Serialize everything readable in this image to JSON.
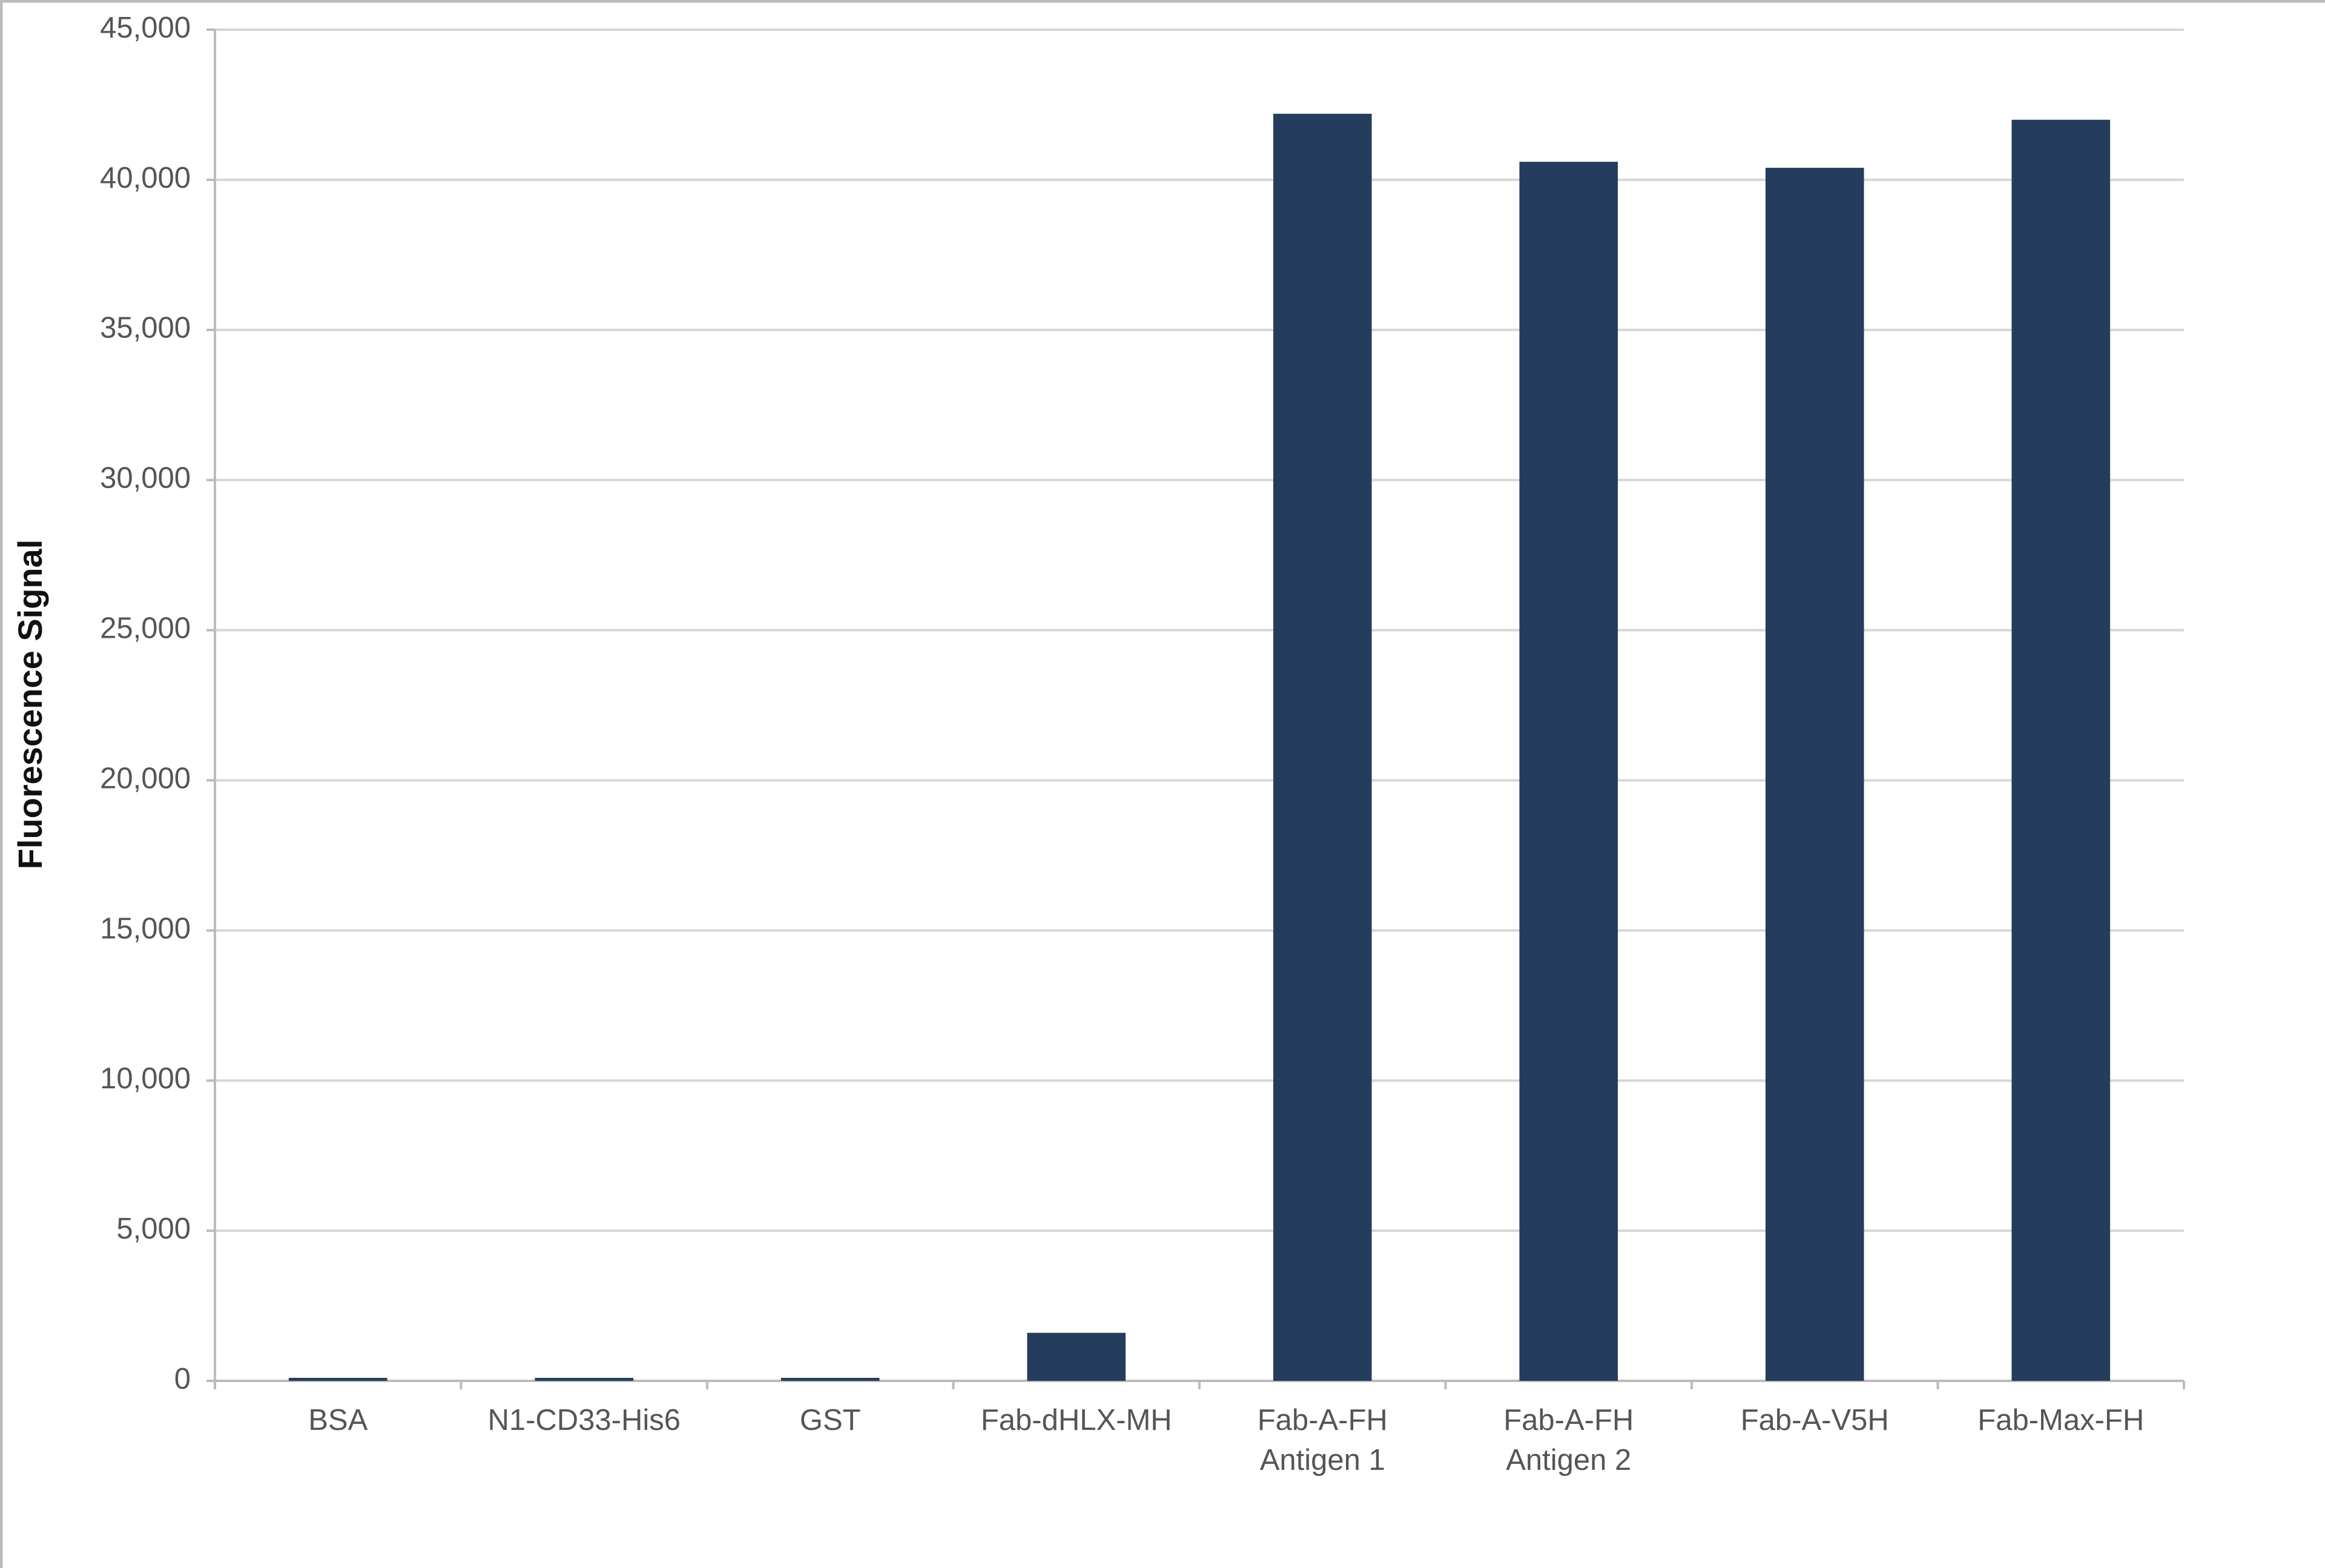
{
  "chart_data": {
    "type": "bar",
    "y_label": "Fluorescence Signal",
    "categories": [
      "BSA",
      "N1-CD33-His6",
      "GST",
      "Fab-dHLX-MH",
      "Fab-A-FH\nAntigen 1",
      "Fab-A-FH\nAntigen 2",
      "Fab-A-V5H",
      "Fab-Max-FH"
    ],
    "values": [
      100,
      100,
      100,
      1600,
      42200,
      40600,
      40400,
      42000
    ],
    "color": "#253d5c",
    "ylim": [
      0,
      45000
    ],
    "yticks": [
      0,
      {
        "value": 5000,
        "label": "5,000"
      },
      {
        "value": 10000,
        "label": "10,000"
      },
      {
        "value": 15000,
        "label": "15,000"
      },
      {
        "value": 20000,
        "label": "20,000"
      },
      {
        "value": 25000,
        "label": "25,000"
      },
      {
        "value": 30000,
        "label": "30,000"
      },
      {
        "value": 35000,
        "label": "35,000"
      },
      {
        "value": 40000,
        "label": "40,000"
      },
      {
        "value": 45000,
        "label": "45,000"
      }
    ],
    "grid": true
  }
}
